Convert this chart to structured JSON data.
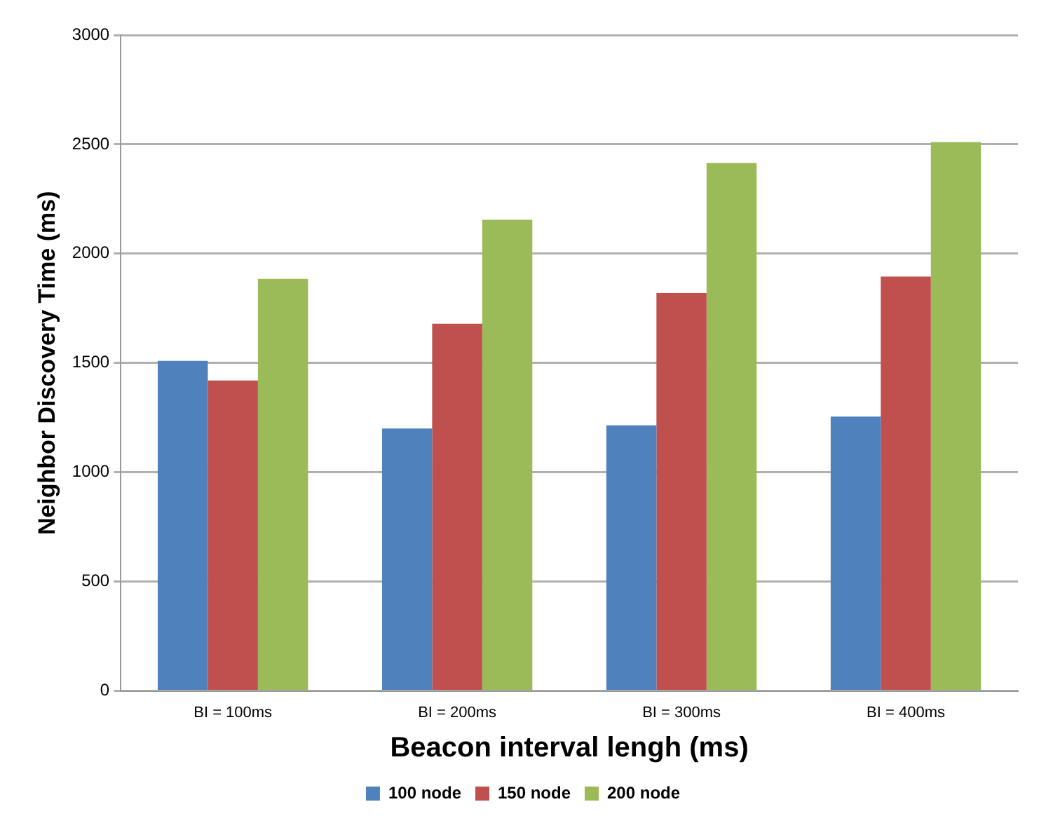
{
  "chart_data": {
    "type": "bar",
    "xlabel": "Beacon interval lengh (ms)",
    "ylabel": "Neighbor Discovery Time (ms)",
    "categories": [
      "BI = 100ms",
      "BI = 200ms",
      "BI = 300ms",
      "BI = 400ms"
    ],
    "series": [
      {
        "name": "100 node",
        "color": "#4f81bd",
        "values": [
          1510,
          1200,
          1215,
          1255
        ]
      },
      {
        "name": "150 node",
        "color": "#c0504d",
        "values": [
          1420,
          1680,
          1820,
          1895
        ]
      },
      {
        "name": "200 node",
        "color": "#9bbb59",
        "values": [
          1885,
          2155,
          2415,
          2510
        ]
      }
    ],
    "ylim": [
      0,
      3000
    ],
    "yticks": [
      0,
      500,
      1000,
      1500,
      2000,
      2500,
      3000
    ],
    "grid": "y",
    "legend": "bottom"
  }
}
